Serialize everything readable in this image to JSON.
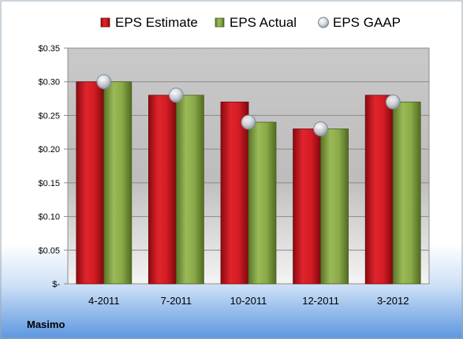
{
  "chart_data": {
    "type": "bar",
    "categories": [
      "4-2011",
      "7-2011",
      "10-2011",
      "12-2011",
      "3-2012"
    ],
    "series": [
      {
        "name": "EPS Estimate",
        "values": [
          0.3,
          0.28,
          0.27,
          0.23,
          0.28
        ],
        "color": "#c0141c"
      },
      {
        "name": "EPS Actual",
        "values": [
          0.3,
          0.28,
          0.24,
          0.23,
          0.27
        ],
        "color": "#7a9a3c"
      }
    ],
    "markers": {
      "name": "EPS GAAP",
      "values": [
        0.3,
        0.28,
        0.24,
        0.23,
        0.27
      ],
      "type": "scatter"
    },
    "ylim": [
      0,
      0.35
    ],
    "yticks": [
      0,
      0.05,
      0.1,
      0.15,
      0.2,
      0.25,
      0.3,
      0.35
    ],
    "ytick_labels": [
      "$-",
      "$0.05",
      "$0.10",
      "$0.15",
      "$0.20",
      "$0.25",
      "$0.30",
      "$0.35"
    ],
    "legend_position": "top",
    "grid": true
  },
  "footer": {
    "company": "Masimo"
  }
}
